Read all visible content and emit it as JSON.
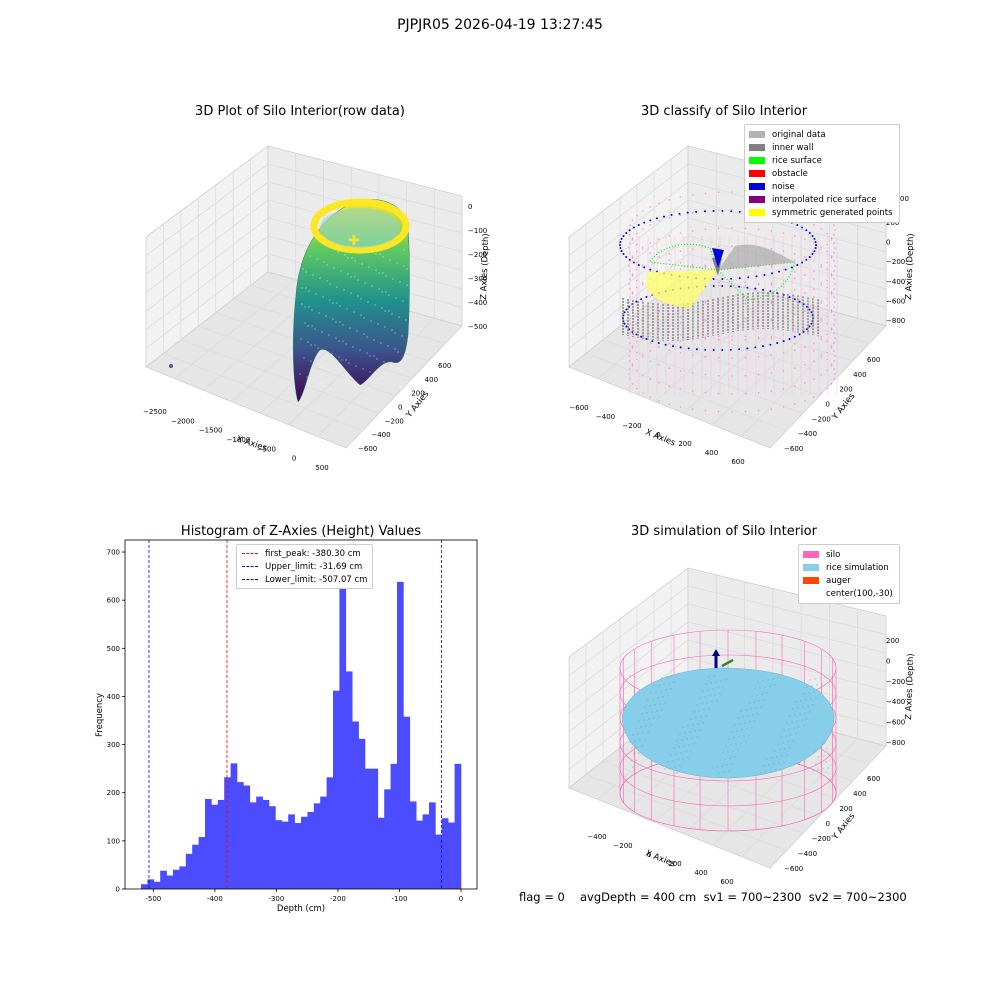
{
  "figure": {
    "suptitle": "PJPJR05 2026-04-19 13:27:45",
    "footer": {
      "flag": "flag = 0",
      "avg": "avgDepth = 400 cm  sv1 = 700~2300  sv2 = 700~2300"
    }
  },
  "colors": {
    "viridis": [
      "#440154",
      "#3b528b",
      "#21918c",
      "#5ec962",
      "#fde725"
    ],
    "hist_bar": "#4b4bff",
    "original": "#b3b3b3",
    "inner_wall": "#808080",
    "rice_surface": "#00ff00",
    "obstacle": "#ff0000",
    "noise": "#0000dd",
    "interp": "#800080",
    "symmetric": "#ffff00",
    "silo": "#ff69b4",
    "rice_sim": "#87ceeb",
    "auger": "#ff4500"
  },
  "chart_data": [
    {
      "type": "scatter",
      "title": "3D Plot of Silo Interior(row data)",
      "xlabel": "X Axies",
      "ylabel": "Y Axies",
      "zlabel": "Z Axies (Depth)",
      "x_ticks": [
        "−2500",
        "−2000",
        "−1500",
        "−1000",
        "−500",
        "0",
        "500"
      ],
      "y_ticks": [
        "600",
        "400",
        "200",
        "0",
        "−200",
        "−400",
        "−600"
      ],
      "z_ticks": [
        "0",
        "−100",
        "−200",
        "−300",
        "−400",
        "−500"
      ],
      "colormap": "viridis"
    },
    {
      "type": "scatter",
      "title": "3D classify of Silo Interior",
      "xlabel": "X Axies",
      "ylabel": "Y Axies",
      "zlabel": "Z Axies (Depth)",
      "x_ticks": [
        "−600",
        "−400",
        "−200",
        "0",
        "200",
        "400",
        "600"
      ],
      "y_ticks": [
        "600",
        "400",
        "200",
        "0",
        "−200",
        "−400",
        "−600"
      ],
      "z_ticks": [
        "200",
        "0",
        "−200",
        "−400",
        "−600",
        "−800"
      ],
      "z_ticks_partial_top": "00",
      "legend": [
        {
          "label": "original data",
          "color": "#b3b3b3"
        },
        {
          "label": "inner wall",
          "color": "#808080"
        },
        {
          "label": "rice surface",
          "color": "#00ff00"
        },
        {
          "label": "obstacle",
          "color": "#ff0000"
        },
        {
          "label": "noise",
          "color": "#0000dd"
        },
        {
          "label": "interpolated rice surface",
          "color": "#800080"
        },
        {
          "label": "symmetric generated points",
          "color": "#ffff00"
        }
      ]
    },
    {
      "type": "bar",
      "title": "Histogram of Z-Axies (Height) Values",
      "xlabel": "Depth (cm)",
      "ylabel": "Frequency",
      "xlim": [
        -546,
        26
      ],
      "ylim": [
        0,
        725
      ],
      "x_ticks": [
        -500,
        -400,
        -300,
        -200,
        -100,
        0
      ],
      "y_ticks": [
        0,
        100,
        200,
        300,
        400,
        500,
        600,
        700
      ],
      "bin_width": 10.4,
      "bin_start": -520,
      "values": [
        10,
        20,
        15,
        38,
        28,
        40,
        47,
        73,
        92,
        108,
        187,
        175,
        185,
        232,
        261,
        222,
        215,
        180,
        192,
        185,
        172,
        143,
        140,
        155,
        137,
        150,
        160,
        178,
        192,
        232,
        412,
        675,
        452,
        348,
        312,
        250,
        250,
        148,
        207,
        260,
        638,
        358,
        182,
        142,
        155,
        180,
        113,
        147,
        138,
        260
      ],
      "vlines": [
        {
          "x": -380.3,
          "color": "#ff0000",
          "label": "first_peak: -380.30 cm"
        },
        {
          "x": -31.69,
          "color": "#0000ff",
          "label": "Upper_limit: -31.69 cm"
        },
        {
          "x": -507.07,
          "color": "#0000ff",
          "label": "Lower_limit: -507.07 cm"
        }
      ],
      "legend_placement": "top-center"
    },
    {
      "type": "scatter",
      "title": "3D simulation of Silo Interior",
      "xlabel": "X Axies",
      "ylabel": "Y Axies",
      "zlabel": "Z Axies (Depth)",
      "x_ticks": [
        "−400",
        "−200",
        "0",
        "200",
        "400",
        "600"
      ],
      "y_ticks": [
        "600",
        "400",
        "200",
        "0",
        "−200",
        "−400",
        "−600"
      ],
      "z_ticks": [
        "200",
        "0",
        "−200",
        "−400",
        "−600",
        "−800"
      ],
      "legend": [
        {
          "label": "silo",
          "color": "#ff69b4"
        },
        {
          "label": "rice simulation",
          "color": "#87ceeb"
        },
        {
          "label": "auger",
          "color": "#ff4500"
        },
        {
          "label": "center(100,-30)",
          "color": ""
        }
      ]
    }
  ]
}
